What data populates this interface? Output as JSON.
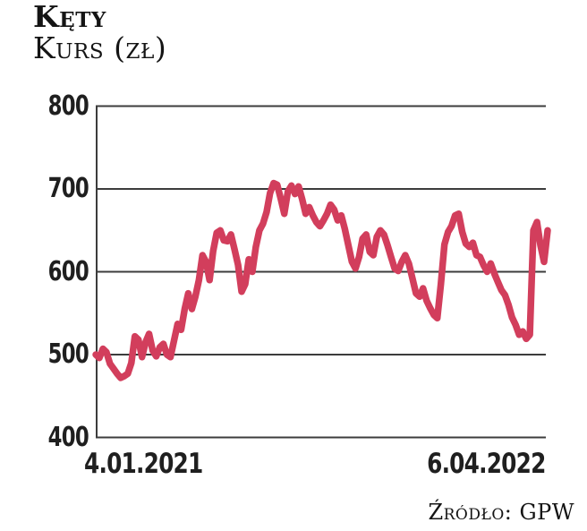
{
  "header": {
    "title": "Kęty",
    "subtitle": "Kurs (zł)"
  },
  "source": "Źródło: GPW",
  "colors": {
    "line": "#d23e5c",
    "grid": "#3c3c3c",
    "text": "#1a1a1a"
  },
  "chart_data": {
    "type": "line",
    "title": "Kęty",
    "ylabel": "Kurs (zł)",
    "ylim": [
      400,
      800
    ],
    "yticks": [
      800,
      700,
      600,
      500,
      400
    ],
    "x_labels": [
      "4.01.2021",
      "6.04.2022"
    ],
    "grid": true,
    "legend": false,
    "series": [
      {
        "name": "Kurs (zł)",
        "values": [
          500,
          496,
          507,
          503,
          489,
          483,
          477,
          472,
          474,
          477,
          490,
          522,
          518,
          497,
          515,
          525,
          505,
          498,
          509,
          513,
          500,
          497,
          517,
          537,
          530,
          555,
          574,
          555,
          570,
          590,
          620,
          612,
          590,
          625,
          647,
          650,
          638,
          637,
          645,
          627,
          608,
          576,
          585,
          615,
          600,
          630,
          650,
          658,
          672,
          695,
          707,
          705,
          688,
          670,
          697,
          704,
          694,
          703,
          688,
          670,
          678,
          668,
          660,
          655,
          662,
          670,
          681,
          675,
          662,
          668,
          652,
          632,
          612,
          604,
          618,
          640,
          645,
          624,
          620,
          642,
          650,
          645,
          632,
          618,
          604,
          601,
          612,
          620,
          610,
          592,
          574,
          570,
          580,
          565,
          556,
          548,
          544,
          585,
          633,
          648,
          655,
          668,
          670,
          648,
          634,
          630,
          635,
          620,
          618,
          608,
          600,
          610,
          598,
          588,
          578,
          572,
          560,
          545,
          536,
          524,
          528,
          519,
          524,
          650,
          660,
          632,
          612,
          650
        ]
      }
    ]
  }
}
